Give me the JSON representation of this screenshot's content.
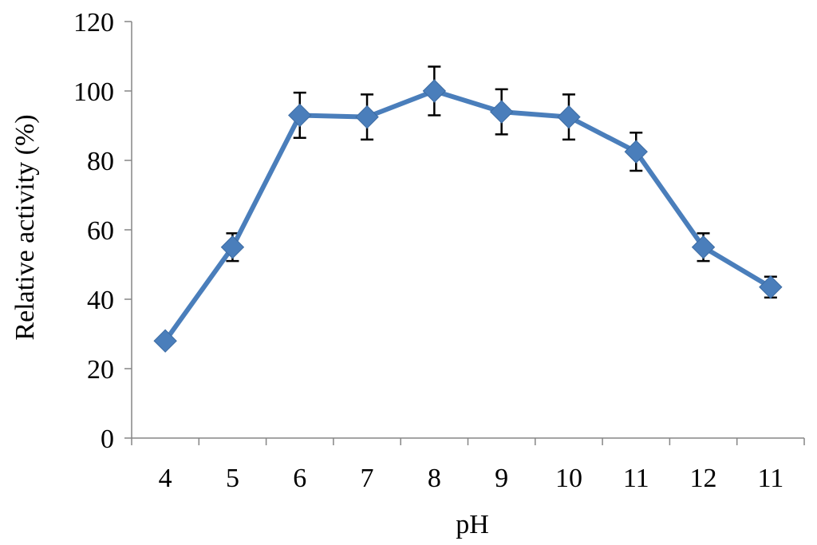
{
  "chart_data": {
    "type": "line",
    "title": "",
    "xlabel": "pH",
    "ylabel": "Relative activity (%)",
    "categories": [
      "4",
      "5",
      "6",
      "7",
      "8",
      "9",
      "10",
      "11",
      "12",
      "11"
    ],
    "ylim": [
      0,
      120
    ],
    "yticks": [
      "0",
      "20",
      "40",
      "60",
      "80",
      "100",
      "120"
    ],
    "grid": false,
    "legend": "none",
    "series": [
      {
        "values": [
          28,
          55,
          93,
          92.5,
          100,
          94,
          92.5,
          82.5,
          55,
          43.5
        ],
        "errors": [
          1,
          4,
          6.5,
          6.5,
          7,
          6.5,
          6.5,
          5.5,
          4,
          3
        ],
        "color": "#4a7ebb",
        "marker": "diamond"
      }
    ]
  }
}
